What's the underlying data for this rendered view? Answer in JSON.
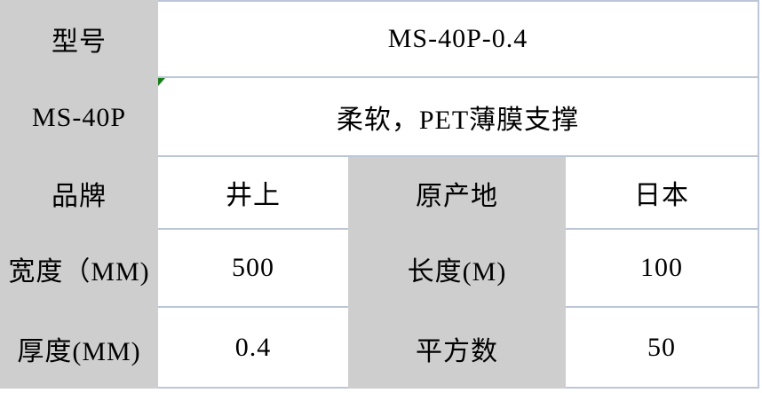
{
  "colors": {
    "label_bg": "#cecece",
    "value_bg": "#ffffff",
    "grid_line": "#bcc6d8",
    "indicator_green": "#1a7d1a",
    "text": "#000000"
  },
  "icons": {
    "comment_indicator": "green-corner-triangle"
  },
  "table": {
    "rows": [
      {
        "label": "型号",
        "value": "MS-40P-0.4"
      },
      {
        "label": "MS-40P",
        "value": "柔软，PET薄膜支撑"
      },
      {
        "c1": "品牌",
        "c2": "井上",
        "c3": "原产地",
        "c4": "日本"
      },
      {
        "c1": "宽度（MM)",
        "c2": "500",
        "c3": "长度(M)",
        "c4": "100"
      },
      {
        "c1": "厚度(MM)",
        "c2": "0.4",
        "c3": "平方数",
        "c4": "50"
      }
    ]
  }
}
